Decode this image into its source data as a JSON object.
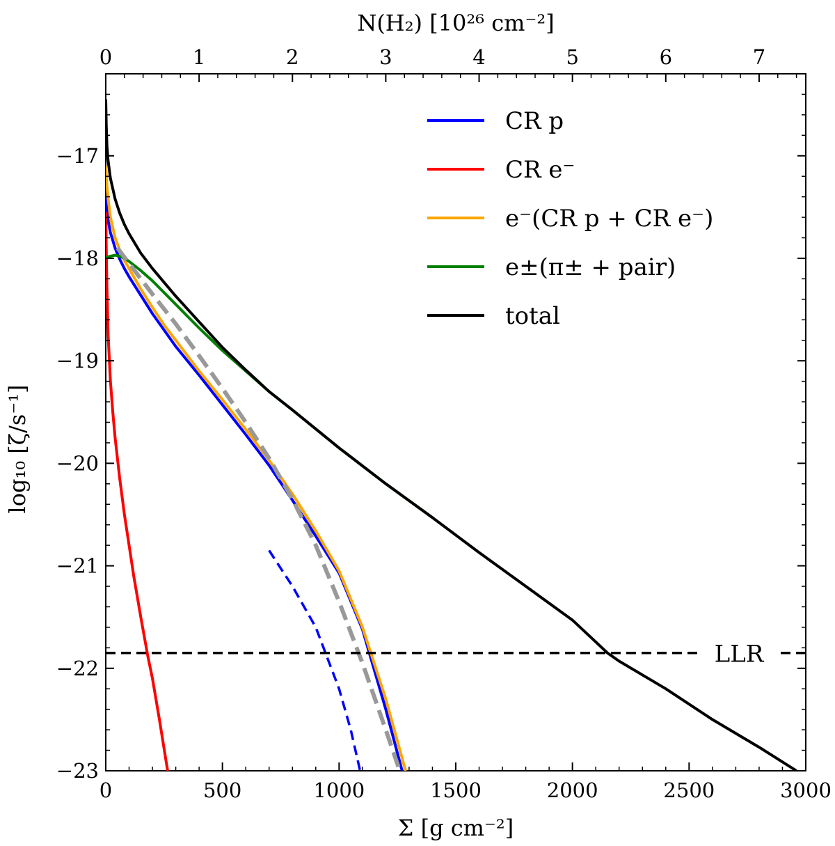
{
  "chart_data": {
    "type": "line",
    "xlabel": "Σ [g cm⁻²]",
    "ylabel": "log₁₀ [ζ/s⁻¹]",
    "top_xlabel": "N(H₂) [10²⁶ cm⁻²]",
    "xlim": [
      0,
      3000
    ],
    "ylim": [
      -23,
      -16.2
    ],
    "top_xlim": [
      0,
      7.5
    ],
    "x_ticks": [
      0,
      500,
      1000,
      1500,
      2000,
      2500,
      3000
    ],
    "x_tick_labels": [
      "0",
      "500",
      "1000",
      "1500",
      "2000",
      "2500",
      "3000"
    ],
    "y_ticks": [
      -23,
      -22,
      -21,
      -20,
      -19,
      -18,
      -17
    ],
    "y_tick_labels": [
      "−23",
      "−22",
      "−21",
      "−20",
      "−19",
      "−18",
      "−17"
    ],
    "top_ticks": [
      0,
      1,
      2,
      3,
      4,
      5,
      6,
      7
    ],
    "top_tick_labels": [
      "0",
      "1",
      "2",
      "3",
      "4",
      "5",
      "6",
      "7"
    ],
    "grid": false,
    "legend_position": "top-right",
    "series": [
      {
        "name": "CR p",
        "color": "#0000ff",
        "style": "solid",
        "x": [
          0,
          5,
          10,
          20,
          40,
          60,
          80,
          100,
          150,
          200,
          250,
          300,
          400,
          500,
          600,
          700,
          800,
          900,
          1000,
          1100,
          1200,
          1270
        ],
        "y": [
          -17.4,
          -17.55,
          -17.63,
          -17.75,
          -17.9,
          -18.01,
          -18.1,
          -18.18,
          -18.36,
          -18.54,
          -18.7,
          -18.86,
          -19.14,
          -19.43,
          -19.72,
          -20.02,
          -20.36,
          -20.71,
          -21.07,
          -21.62,
          -22.4,
          -23.0
        ]
      },
      {
        "name": "CR e⁻",
        "color": "#ff0000",
        "style": "solid",
        "x": [
          0,
          2,
          5,
          10,
          20,
          30,
          40,
          60,
          80,
          100,
          120,
          150,
          180,
          200,
          230,
          265
        ],
        "y": [
          -17.55,
          -17.9,
          -18.3,
          -18.75,
          -19.2,
          -19.5,
          -19.75,
          -20.15,
          -20.5,
          -20.8,
          -21.1,
          -21.5,
          -21.88,
          -22.1,
          -22.5,
          -23.0
        ]
      },
      {
        "name": "e⁻(CR p + CR e⁻)",
        "color": "#ffa500",
        "style": "solid",
        "x": [
          0,
          5,
          10,
          20,
          40,
          60,
          80,
          100,
          150,
          200,
          250,
          300,
          400,
          500,
          600,
          700,
          800,
          900,
          1000,
          1100,
          1200,
          1285
        ],
        "y": [
          -17.1,
          -17.3,
          -17.42,
          -17.6,
          -17.8,
          -17.92,
          -18.02,
          -18.1,
          -18.3,
          -18.48,
          -18.65,
          -18.8,
          -19.1,
          -19.38,
          -19.67,
          -19.97,
          -20.3,
          -20.66,
          -21.05,
          -21.6,
          -22.3,
          -23.0
        ]
      },
      {
        "name": "e±(π± + pair)",
        "color": "#008000",
        "style": "solid",
        "x": [
          0,
          20,
          40,
          60,
          80,
          100,
          150,
          200,
          300,
          400,
          500,
          600,
          700,
          800,
          1000,
          1200,
          1400
        ],
        "y": [
          -17.99,
          -17.98,
          -17.97,
          -17.98,
          -18.0,
          -18.03,
          -18.12,
          -18.22,
          -18.45,
          -18.68,
          -18.9,
          -19.1,
          -19.3,
          -19.48,
          -19.85,
          -20.2,
          -20.53
        ]
      },
      {
        "name": "total",
        "color": "#000000",
        "style": "solid",
        "x": [
          0,
          2,
          5,
          10,
          20,
          40,
          60,
          80,
          100,
          150,
          200,
          300,
          400,
          500,
          600,
          700,
          800,
          1000,
          1200,
          1400,
          1600,
          1800,
          2000,
          2150,
          2200,
          2400,
          2600,
          2800,
          2960
        ],
        "y": [
          -16.45,
          -16.7,
          -16.9,
          -17.05,
          -17.22,
          -17.42,
          -17.56,
          -17.67,
          -17.76,
          -17.95,
          -18.1,
          -18.37,
          -18.62,
          -18.87,
          -19.09,
          -19.3,
          -19.48,
          -19.85,
          -20.2,
          -20.53,
          -20.87,
          -21.2,
          -21.53,
          -21.85,
          -21.93,
          -22.2,
          -22.5,
          -22.77,
          -23.0
        ]
      },
      {
        "name": "CR p (dashed)",
        "color": "#0000ff",
        "style": "dashed",
        "legend": false,
        "x": [
          700,
          800,
          900,
          1000,
          1050,
          1090
        ],
        "y": [
          -20.85,
          -21.2,
          -21.6,
          -22.2,
          -22.6,
          -23.0
        ]
      },
      {
        "name": "fit (gray dashed)",
        "color": "#999999",
        "style": "dashed",
        "legend": false,
        "x": [
          50,
          100,
          200,
          300,
          400,
          500,
          600,
          700,
          800,
          900,
          1000,
          1100,
          1200,
          1260
        ],
        "y": [
          -17.9,
          -18.05,
          -18.35,
          -18.64,
          -18.95,
          -19.27,
          -19.6,
          -19.95,
          -20.35,
          -20.8,
          -21.35,
          -21.95,
          -22.6,
          -23.0
        ]
      }
    ],
    "reference_line": {
      "name": "LLR",
      "y": -21.85,
      "color": "#000000",
      "style": "dashed"
    }
  }
}
